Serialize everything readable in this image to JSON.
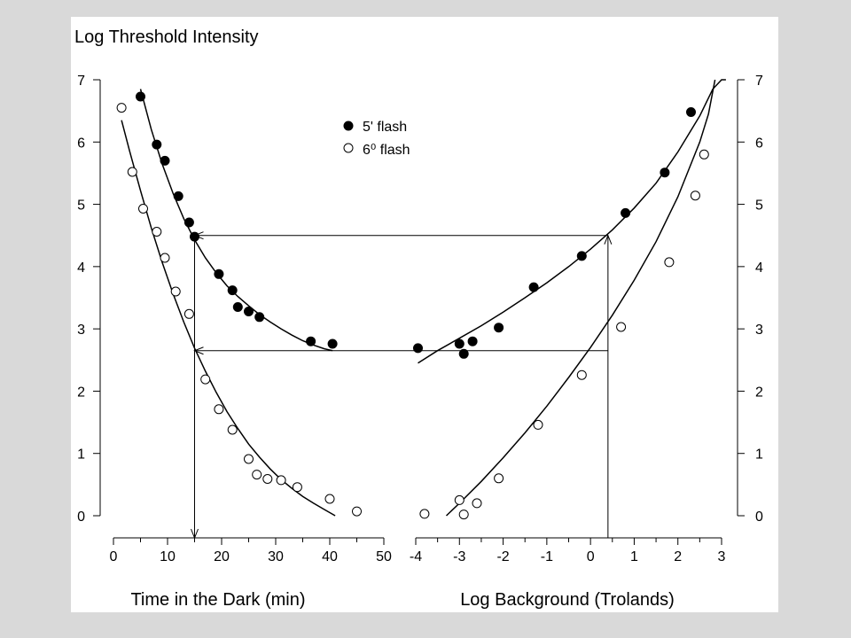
{
  "chart_data": {
    "type": "scatter",
    "title": "Log Threshold Intensity",
    "legend": [
      "5' flash",
      "6⁰ flash"
    ],
    "legend_position": "top-center",
    "grid": false,
    "ylim": [
      0,
      7
    ],
    "yticks": [
      "0",
      "1",
      "2",
      "3",
      "4",
      "5",
      "6",
      "7"
    ],
    "panels": [
      {
        "xlabel": "Time in the Dark (min)",
        "xlim": [
          0,
          50
        ],
        "xticks": [
          "0",
          "10",
          "20",
          "30",
          "40",
          "50"
        ],
        "series": [
          {
            "name": "5' flash",
            "marker": "filled-circle",
            "x": [
              5,
              8,
              9.5,
              12,
              14,
              15,
              19.5,
              22,
              23,
              25,
              27,
              36.5,
              40.5
            ],
            "y": [
              6.73,
              5.96,
              5.7,
              5.13,
              4.71,
              4.48,
              3.88,
              3.62,
              3.35,
              3.28,
              3.19,
              2.8,
              2.76
            ]
          },
          {
            "name": "6⁰ flash",
            "marker": "open-circle",
            "x": [
              1.5,
              3.5,
              5.5,
              8,
              9.5,
              11.5,
              14,
              17,
              19.5,
              22,
              25,
              26.5,
              28.5,
              31,
              34,
              40,
              45
            ],
            "y": [
              6.55,
              5.52,
              4.93,
              4.56,
              4.14,
              3.6,
              3.24,
              2.19,
              1.71,
              1.38,
              0.91,
              0.66,
              0.59,
              0.57,
              0.46,
              0.27,
              0.07
            ]
          }
        ]
      },
      {
        "xlabel": "Log Background (Trolands)",
        "xlim": [
          -4,
          3
        ],
        "xticks": [
          "-4",
          "-3",
          "-2",
          "-1",
          "0",
          "1",
          "2",
          "3"
        ],
        "series": [
          {
            "name": "5' flash",
            "marker": "filled-circle",
            "x": [
              -3.95,
              -3.0,
              -2.9,
              -2.7,
              -2.1,
              -1.3,
              -0.2,
              0.8,
              1.7,
              2.3
            ],
            "y": [
              2.69,
              2.76,
              2.6,
              2.8,
              3.02,
              3.67,
              4.17,
              4.86,
              5.51,
              6.48
            ]
          },
          {
            "name": "6⁰ flash",
            "marker": "open-circle",
            "x": [
              -3.8,
              -3.0,
              -2.9,
              -2.6,
              -2.1,
              -1.2,
              -0.2,
              0.7,
              1.8,
              2.4,
              2.6
            ],
            "y": [
              0.03,
              0.25,
              0.02,
              0.2,
              0.6,
              1.46,
              2.26,
              3.03,
              4.07,
              5.14,
              5.8
            ]
          }
        ]
      }
    ],
    "fit_curves": [
      {
        "panel": 0,
        "series": "5' flash",
        "x": [
          5,
          7,
          9,
          11,
          13,
          15,
          17,
          19,
          21,
          23,
          25,
          27,
          29,
          31,
          33,
          35,
          37,
          39,
          40.5
        ],
        "y": [
          6.85,
          6.2,
          5.65,
          5.18,
          4.77,
          4.43,
          4.14,
          3.9,
          3.69,
          3.52,
          3.37,
          3.23,
          3.11,
          3.0,
          2.9,
          2.81,
          2.74,
          2.68,
          2.65
        ]
      },
      {
        "panel": 0,
        "series": "6⁰ flash",
        "x": [
          1.5,
          3,
          5,
          7,
          9,
          11,
          13,
          15,
          17,
          19,
          21,
          23,
          25,
          27,
          29,
          31,
          33,
          35,
          37,
          39,
          41
        ],
        "y": [
          6.35,
          5.85,
          5.22,
          4.62,
          4.07,
          3.57,
          3.11,
          2.69,
          2.32,
          1.98,
          1.67,
          1.4,
          1.15,
          0.94,
          0.75,
          0.58,
          0.44,
          0.31,
          0.2,
          0.1,
          0.0
        ]
      },
      {
        "panel": 1,
        "series": "5' flash",
        "x": [
          -3.95,
          -3.5,
          -3.0,
          -2.5,
          -2.0,
          -1.5,
          -1.0,
          -0.5,
          0.0,
          0.5,
          1.0,
          1.5,
          2.0,
          2.5,
          2.8,
          3.0,
          3.1
        ],
        "y": [
          2.45,
          2.65,
          2.85,
          3.05,
          3.27,
          3.5,
          3.74,
          4.0,
          4.28,
          4.59,
          4.94,
          5.34,
          5.84,
          6.42,
          6.85,
          7.0,
          7.0
        ]
      },
      {
        "panel": 1,
        "series": "6⁰ flash",
        "x": [
          -3.3,
          -3.0,
          -2.5,
          -2.0,
          -1.5,
          -1.0,
          -0.5,
          0.0,
          0.5,
          1.0,
          1.5,
          2.0,
          2.5,
          2.7,
          2.85
        ],
        "y": [
          0.0,
          0.2,
          0.55,
          0.93,
          1.33,
          1.76,
          2.22,
          2.7,
          3.22,
          3.78,
          4.4,
          5.12,
          6.0,
          6.45,
          7.0
        ]
      }
    ],
    "arrows": [
      {
        "level": 4.5,
        "from_panel": 1,
        "from_x": 0.4,
        "to_panel": 0,
        "to_x": 15,
        "note": "vertical from x-axis to curve then horizontal to left curve"
      },
      {
        "level": 2.65,
        "from_panel": 1,
        "from_x": 0.4,
        "to_panel": 0,
        "to_x": 15,
        "note": "horizontal and then down to x-axis"
      }
    ]
  }
}
